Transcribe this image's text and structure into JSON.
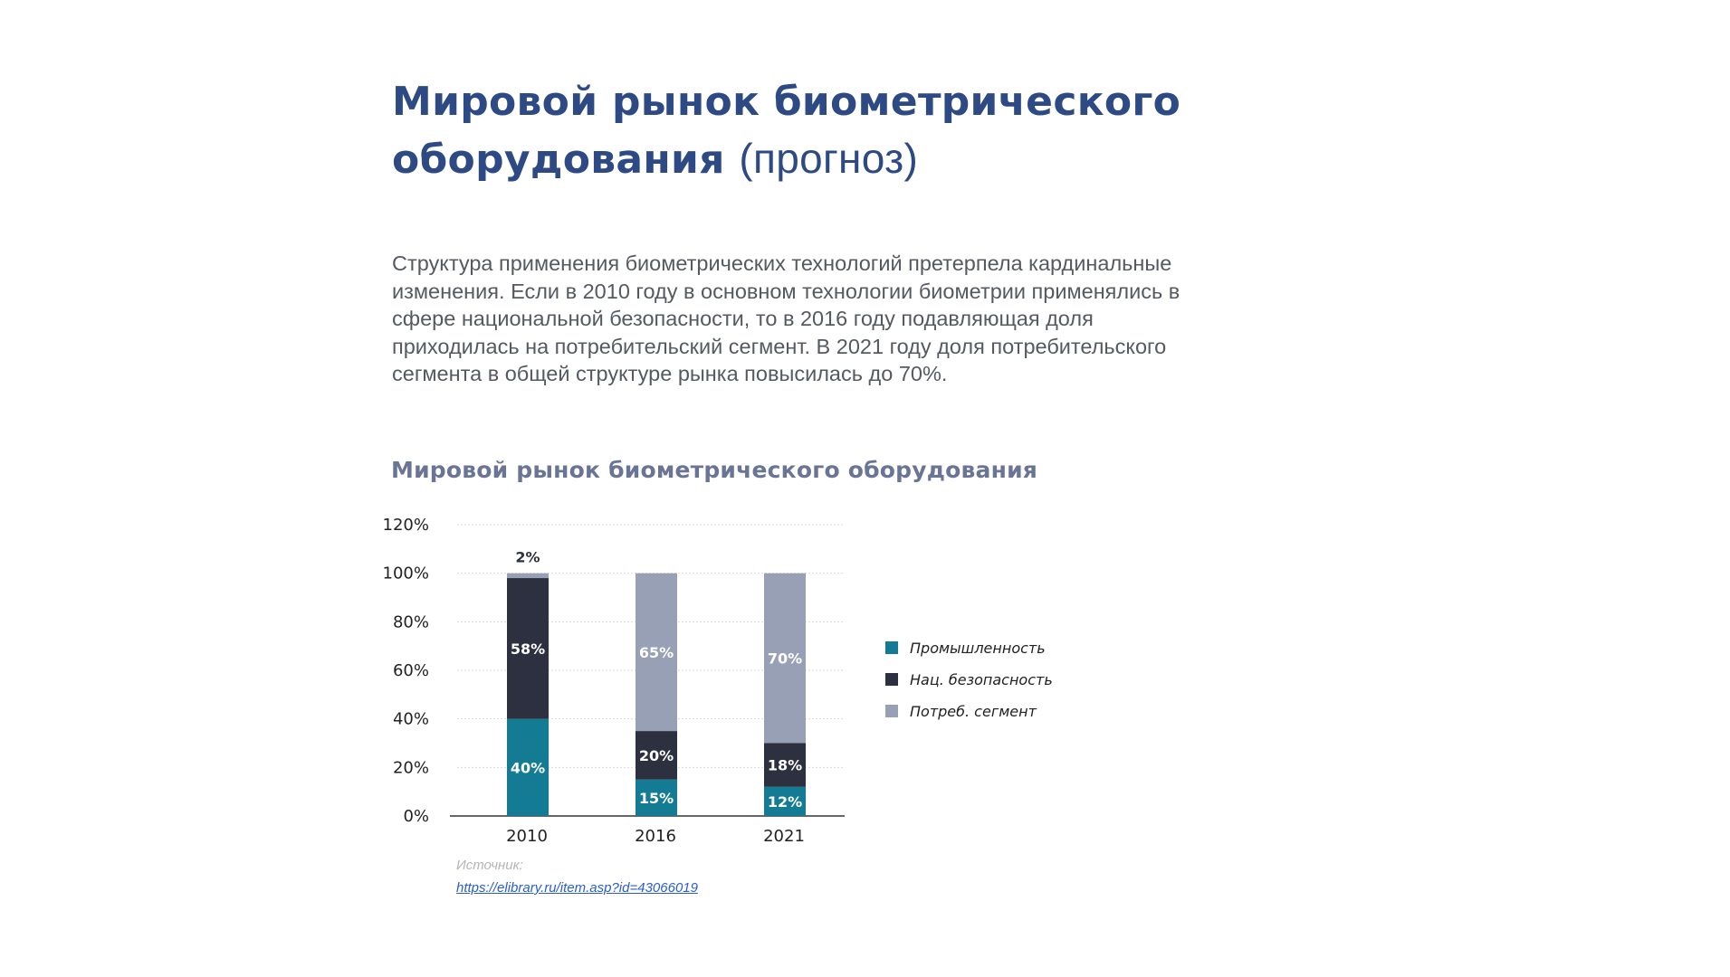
{
  "heading": {
    "title_bold": "Мировой рынок биометрического\nоборудования",
    "title_light": "(прогноз)"
  },
  "description": "Структура применения биометрических технологий претерпела кардинальные\nизменения. Если в 2010 году в основном технологии биометрии применялись в\nсфере национальной безопасности, то в 2016 году подавляющая доля\nприходилась на потребительский сегмент. В 2021 году доля потребительского\nсегмента в общей структуре рынка повысилась до 70%.",
  "source": {
    "label": "Источник:",
    "link": "https://elibrary.ru/item.asp?id=43066019"
  },
  "chart_data": {
    "type": "bar",
    "stacked": true,
    "title": "Мировой рынок биометрического оборудования",
    "categories": [
      "2010",
      "2016",
      "2021"
    ],
    "series": [
      {
        "name": "Промышленность",
        "values": [
          40,
          15,
          12
        ],
        "labels": [
          "40%",
          "15%",
          "12%"
        ],
        "color": "#137b93"
      },
      {
        "name": "Нац. безопасность",
        "values": [
          58,
          20,
          18
        ],
        "labels": [
          "58%",
          "20%",
          "18%"
        ],
        "color": "#2c303f"
      },
      {
        "name": "Потреб. сегмент",
        "values": [
          2,
          65,
          70
        ],
        "labels": [
          "2%",
          "65%",
          "70%"
        ],
        "color": "#98a0b5"
      }
    ],
    "yticks": [
      "0%",
      "20%",
      "40%",
      "60%",
      "80%",
      "100%",
      "120%"
    ],
    "ylim": [
      0,
      120
    ],
    "grid": true,
    "legend_position": "right"
  }
}
